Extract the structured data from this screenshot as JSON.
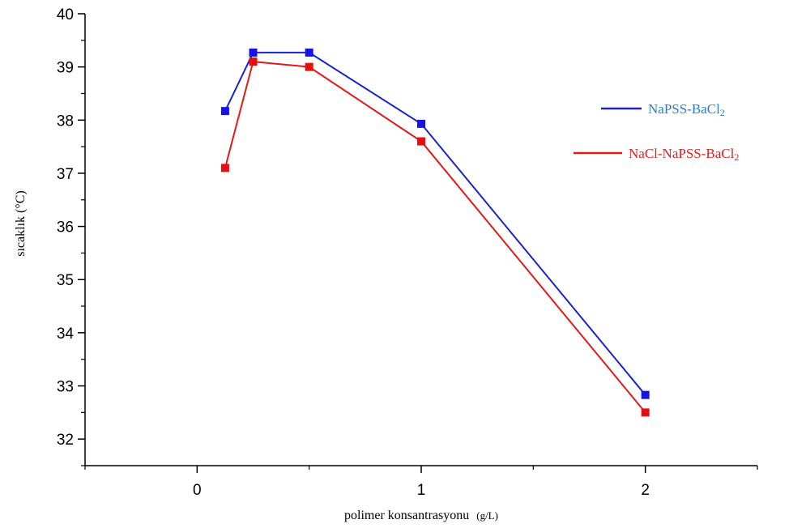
{
  "chart_data": {
    "type": "line",
    "xlabel": "polimer konsantrasyonu",
    "xlabel_unit": "(g/L)",
    "ylabel": "sıcaklık (°C)",
    "xlim": [
      -0.5,
      2.5
    ],
    "ylim": [
      31.5,
      40
    ],
    "x_ticks": [
      "0",
      "1",
      "2"
    ],
    "y_ticks": [
      "32",
      "33",
      "34",
      "35",
      "36",
      "37",
      "38",
      "39",
      "40"
    ],
    "grid": false,
    "legend_position": "right",
    "series": [
      {
        "name": "NaPSS-BaCl",
        "name_subscript": "2",
        "color": "#1a24c8",
        "marker_color": "#1414e6",
        "label_color": "#2e7cc7",
        "x": [
          0.125,
          0.25,
          0.5,
          1,
          2
        ],
        "y": [
          38.17,
          39.27,
          39.27,
          37.93,
          32.83
        ]
      },
      {
        "name": "NaCl-NaPSS-BaCl",
        "name_subscript": "2",
        "color": "#e01a1a",
        "marker_color": "#e60f0f",
        "label_color": "#d9221f",
        "x": [
          0.125,
          0.25,
          0.5,
          1,
          2
        ],
        "y": [
          37.1,
          39.1,
          39.0,
          37.6,
          32.5
        ]
      }
    ]
  }
}
